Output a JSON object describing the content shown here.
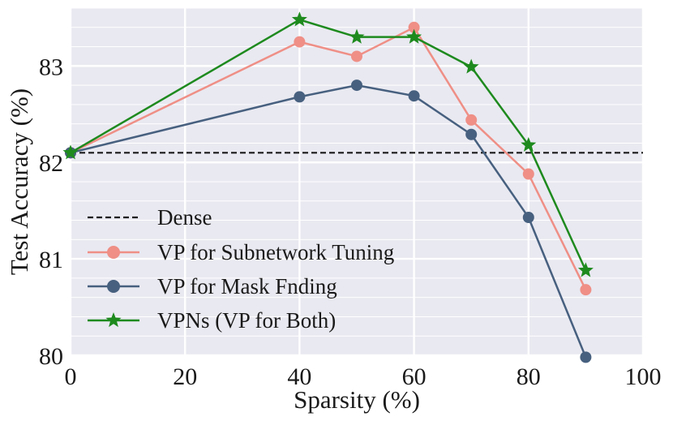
{
  "chart_data": {
    "type": "line",
    "title": "",
    "xlabel": "Sparsity (%)",
    "ylabel": "Test Accuracy (%)",
    "xlim": [
      0,
      100
    ],
    "ylim": [
      80,
      83.6
    ],
    "xticks": [
      0,
      20,
      40,
      60,
      80,
      100
    ],
    "yticks": [
      80,
      81,
      82,
      83
    ],
    "xtick_labels": [
      "0",
      "20",
      "40",
      "60",
      "80",
      "100"
    ],
    "ytick_labels": [
      "80",
      "81",
      "82",
      "83"
    ],
    "grid": true,
    "legend_position": "lower-left",
    "reference_line": {
      "name": "Dense",
      "value": 82.1,
      "color": "#1a1a1a",
      "style": "dashed"
    },
    "series": [
      {
        "name": "VP for Subnetwork Tuning",
        "color": "#ef8f86",
        "marker": "circle",
        "x": [
          0,
          40,
          50,
          60,
          70,
          80,
          90
        ],
        "values": [
          82.1,
          83.25,
          83.1,
          83.4,
          82.44,
          81.88,
          80.68
        ]
      },
      {
        "name": "VP for Mask Fnding",
        "color": "#47607f",
        "marker": "circle",
        "x": [
          0,
          40,
          50,
          60,
          70,
          80,
          90
        ],
        "values": [
          82.1,
          82.68,
          82.8,
          82.69,
          82.29,
          81.43,
          79.98
        ]
      },
      {
        "name": "VPNs (VP for Both)",
        "color": "#1e8a1e",
        "marker": "star",
        "x": [
          0,
          40,
          50,
          60,
          70,
          80,
          90
        ],
        "values": [
          82.1,
          83.48,
          83.3,
          83.3,
          82.99,
          82.18,
          80.88
        ]
      }
    ],
    "legend": [
      "Dense",
      "VP for Subnetwork Tuning",
      "VP for Mask Fnding",
      "VPNs (VP for Both)"
    ]
  }
}
